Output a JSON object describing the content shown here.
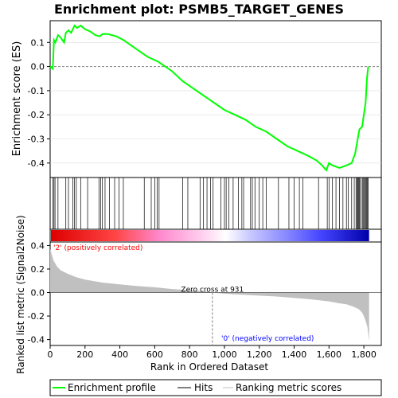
{
  "chart_data": {
    "type": "line",
    "title": "Enrichment plot: PSMB5_TARGET_GENES",
    "xlabel": "Rank in Ordered Dataset",
    "xlim": [
      0,
      1900
    ],
    "x_ticks": [
      0,
      200,
      400,
      600,
      800,
      1000,
      1200,
      1400,
      1600,
      1800
    ],
    "x_tick_labels": [
      "0",
      "200",
      "400",
      "600",
      "800",
      "1,000",
      "1,200",
      "1,400",
      "1,600",
      "1,800"
    ],
    "es_panel": {
      "ylabel": "Enrichment score (ES)",
      "ylim": [
        -0.46,
        0.19
      ],
      "y_ticks": [
        -0.4,
        -0.3,
        -0.2,
        -0.1,
        0.0,
        0.1
      ],
      "y_tick_labels": [
        "-0.4",
        "-0.3",
        "-0.2",
        "-0.1",
        "0.0",
        "0.1"
      ],
      "series": [
        {
          "name": "Enrichment profile",
          "color": "#00ff00",
          "x": [
            0,
            15,
            22,
            30,
            45,
            60,
            80,
            90,
            105,
            120,
            140,
            155,
            175,
            200,
            230,
            260,
            285,
            300,
            330,
            380,
            420,
            500,
            560,
            620,
            700,
            760,
            820,
            880,
            940,
            1000,
            1060,
            1120,
            1180,
            1240,
            1300,
            1360,
            1420,
            1480,
            1530,
            1560,
            1585,
            1600,
            1620,
            1660,
            1700,
            1730,
            1750,
            1765,
            1775,
            1790,
            1800,
            1810,
            1818,
            1825
          ],
          "y": [
            0.0,
            -0.01,
            0.11,
            0.1,
            0.13,
            0.12,
            0.1,
            0.14,
            0.15,
            0.14,
            0.17,
            0.16,
            0.17,
            0.155,
            0.145,
            0.13,
            0.125,
            0.135,
            0.135,
            0.125,
            0.11,
            0.07,
            0.04,
            0.02,
            -0.02,
            -0.06,
            -0.09,
            -0.12,
            -0.15,
            -0.18,
            -0.2,
            -0.22,
            -0.25,
            -0.27,
            -0.3,
            -0.33,
            -0.35,
            -0.37,
            -0.39,
            -0.41,
            -0.43,
            -0.4,
            -0.41,
            -0.42,
            -0.41,
            -0.4,
            -0.36,
            -0.3,
            -0.26,
            -0.25,
            -0.2,
            -0.15,
            -0.05,
            0.0
          ]
        }
      ]
    },
    "hits": [
      15,
      22,
      28,
      45,
      90,
      105,
      130,
      140,
      150,
      175,
      215,
      280,
      290,
      300,
      315,
      340,
      370,
      395,
      420,
      540,
      580,
      600,
      615,
      625,
      760,
      790,
      860,
      880,
      900,
      920,
      935,
      980,
      1000,
      1010,
      1025,
      1050,
      1080,
      1100,
      1110,
      1150,
      1160,
      1175,
      1200,
      1220,
      1240,
      1310,
      1370,
      1400,
      1430,
      1450,
      1540,
      1590,
      1600,
      1620,
      1640,
      1660,
      1680,
      1700,
      1710,
      1730,
      1745,
      1755,
      1760,
      1765,
      1770,
      1775,
      1780,
      1790,
      1795,
      1800,
      1805,
      1810,
      1815,
      1820,
      1825
    ],
    "metric_panel": {
      "ylabel": "Ranked list metric (Signal2Noise)",
      "ylim": [
        -0.45,
        0.43
      ],
      "y_ticks": [
        -0.4,
        -0.2,
        0.0,
        0.2,
        0.4
      ],
      "y_tick_labels": [
        "-0.4",
        "-0.2",
        "0.0",
        "0.2",
        "0.4"
      ],
      "x": [
        0,
        10,
        20,
        40,
        60,
        100,
        150,
        200,
        300,
        400,
        500,
        600,
        700,
        800,
        900,
        931,
        1000,
        1100,
        1200,
        1300,
        1400,
        1500,
        1600,
        1650,
        1700,
        1740,
        1770,
        1790,
        1800,
        1810,
        1820,
        1830
      ],
      "values": [
        0.37,
        0.32,
        0.27,
        0.22,
        0.19,
        0.16,
        0.13,
        0.11,
        0.085,
        0.07,
        0.055,
        0.045,
        0.03,
        0.02,
        0.008,
        0.0,
        -0.01,
        -0.018,
        -0.026,
        -0.034,
        -0.045,
        -0.058,
        -0.075,
        -0.09,
        -0.1,
        -0.12,
        -0.14,
        -0.17,
        -0.2,
        -0.24,
        -0.29,
        -0.41
      ],
      "annotations": {
        "zero_cross": "Zero cross at 931",
        "zero_cross_rank": 931,
        "positive": "'2' (positively correlated)",
        "negative": "'0' (negatively correlated)"
      }
    },
    "legend": {
      "placement": "bottom",
      "items": [
        "Enrichment profile",
        "Hits",
        "Ranking metric scores"
      ]
    },
    "colors": {
      "es_line": "#00ff00",
      "hit": "#000000",
      "metric_fill": "#c0c0c0",
      "positive_label": "#ff0000",
      "negative_label": "#0000ff",
      "zero_line": "#808080"
    }
  }
}
